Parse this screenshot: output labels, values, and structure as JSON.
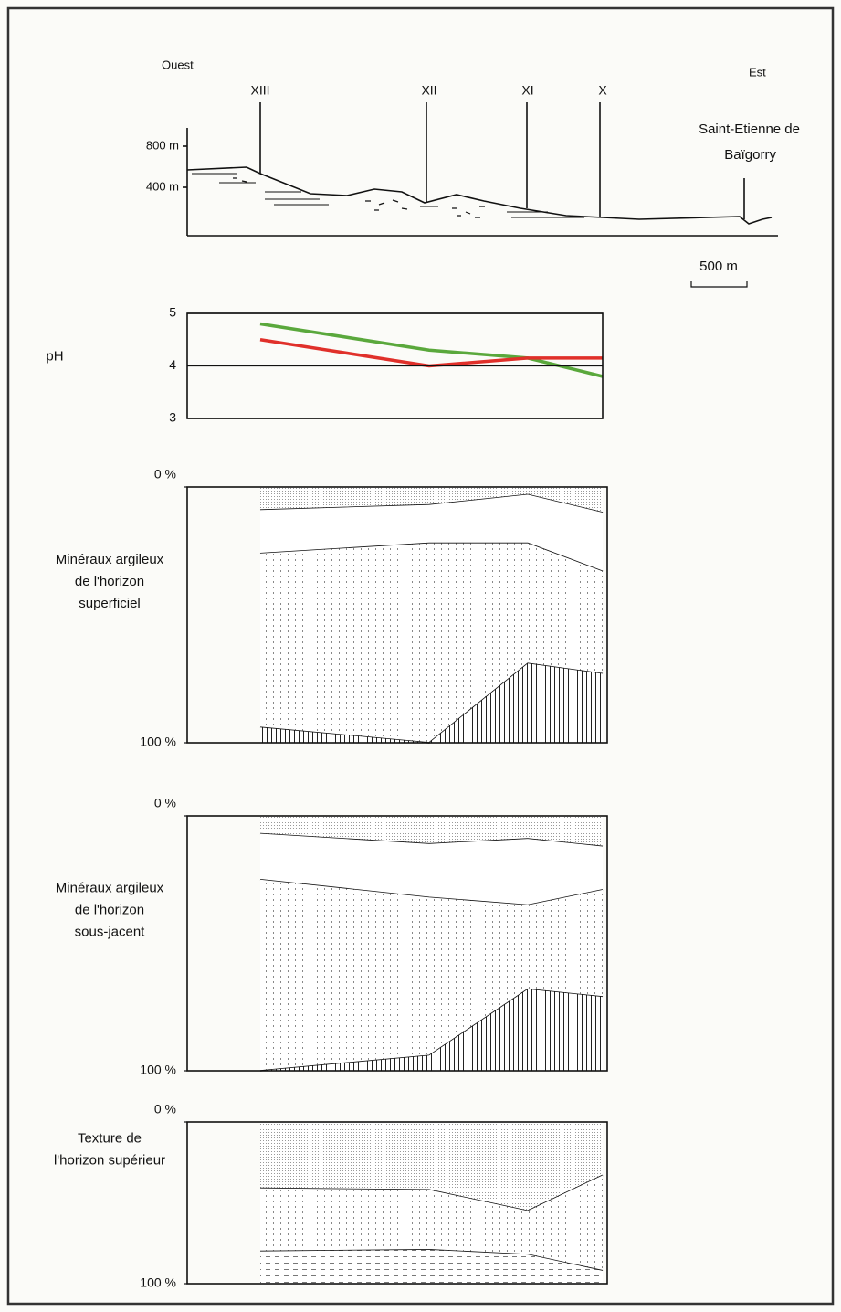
{
  "profile": {
    "west": "Ouest",
    "east": "Est",
    "elevations": [
      "800 m",
      "400 m"
    ],
    "town": [
      "Saint-Etienne de",
      "Baïgorry"
    ],
    "scale": "500 m"
  },
  "chart_data": [
    {
      "type": "line",
      "ylabel": "pH",
      "categories": [
        "XIII",
        "XII",
        "XI",
        "X"
      ],
      "series": [
        {
          "color": "#5aa83c",
          "values": [
            4.8,
            4.3,
            4.15,
            3.8
          ]
        },
        {
          "color": "#e0302a",
          "values": [
            4.5,
            4.0,
            4.15,
            4.15
          ]
        }
      ],
      "ylim": [
        3,
        5
      ],
      "yticks": [
        3,
        4,
        5
      ],
      "grid": true
    },
    {
      "type": "area",
      "stacked": true,
      "y_inverted": true,
      "ylabel": [
        "Minéraux argileux",
        "de l'horizon",
        "superficiel"
      ],
      "categories": [
        null,
        null,
        null,
        null
      ],
      "series": [
        {
          "values": [
            9,
            7,
            3,
            10
          ]
        },
        {
          "values": [
            17,
            15,
            19,
            23
          ]
        },
        {
          "values": [
            68,
            78,
            47,
            40
          ]
        },
        {
          "values": [
            6,
            0,
            31,
            27
          ]
        }
      ],
      "ylim": [
        0,
        100
      ],
      "yticks": [
        {
          "value": 0,
          "label": "0 %"
        },
        {
          "value": 100,
          "label": "100 %"
        }
      ]
    },
    {
      "type": "area",
      "stacked": true,
      "y_inverted": true,
      "ylabel": [
        "Minéraux argileux",
        "de l'horizon",
        "sous-jacent"
      ],
      "categories": [
        null,
        null,
        null,
        null
      ],
      "series": [
        {
          "values": [
            7,
            11,
            9,
            12
          ]
        },
        {
          "values": [
            18,
            21,
            26,
            17
          ]
        },
        {
          "values": [
            75,
            62,
            33,
            42
          ]
        },
        {
          "values": [
            0,
            6,
            32,
            29
          ]
        }
      ],
      "ylim": [
        0,
        100
      ],
      "yticks": [
        {
          "value": 0,
          "label": "0 %"
        },
        {
          "value": 100,
          "label": "100 %"
        }
      ]
    },
    {
      "type": "area",
      "stacked": true,
      "y_inverted": true,
      "ylabel": [
        "Texture de",
        "l'horizon supérieur"
      ],
      "categories": [
        null,
        null,
        null,
        null
      ],
      "series": [
        {
          "values": [
            41,
            42,
            55,
            33
          ]
        },
        {
          "values": [
            39,
            37,
            27,
            59
          ]
        },
        {
          "values": [
            20,
            21,
            18,
            8
          ]
        }
      ],
      "ylim": [
        0,
        100
      ],
      "yticks": [
        {
          "value": 0,
          "label": "0 %"
        },
        {
          "value": 100,
          "label": "100 %"
        }
      ]
    }
  ]
}
